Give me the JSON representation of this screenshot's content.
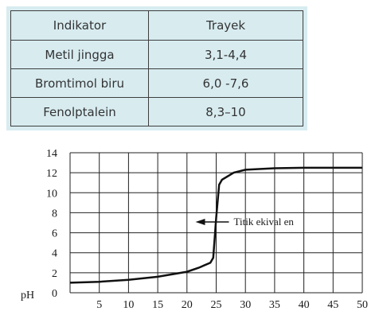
{
  "table": {
    "headers": [
      "Indikator",
      "Trayek"
    ],
    "rows": [
      [
        "Metil jingga",
        "3,1-4,4"
      ],
      [
        "Bromtimol biru",
        "6,0 -7,6"
      ],
      [
        "Fenolptalein",
        "8,3–10"
      ]
    ]
  },
  "chart_data": {
    "type": "line",
    "title": "",
    "xlabel": "",
    "ylabel": "pH",
    "xlim": [
      0,
      50
    ],
    "ylim": [
      0,
      14
    ],
    "grid": true,
    "x_ticks": [
      5,
      10,
      15,
      20,
      25,
      30,
      35,
      40,
      45,
      50
    ],
    "y_ticks": [
      0,
      2,
      4,
      6,
      8,
      10,
      12,
      14
    ],
    "series": [
      {
        "x": [
          0,
          5,
          10,
          15,
          20,
          22,
          24,
          24.5,
          25,
          25.5,
          26,
          28,
          30,
          35,
          40,
          45,
          50
        ],
        "y": [
          1,
          1.1,
          1.3,
          1.6,
          2.1,
          2.5,
          3.0,
          3.5,
          7.5,
          10.8,
          11.3,
          12.0,
          12.3,
          12.45,
          12.5,
          12.5,
          12.5
        ]
      }
    ],
    "annotation": {
      "text": "Titik ekival en",
      "x": 25,
      "y": 7
    }
  },
  "colors": {
    "table_bg": "#d8ecf0",
    "line": "#111111",
    "grid": "#222222"
  }
}
